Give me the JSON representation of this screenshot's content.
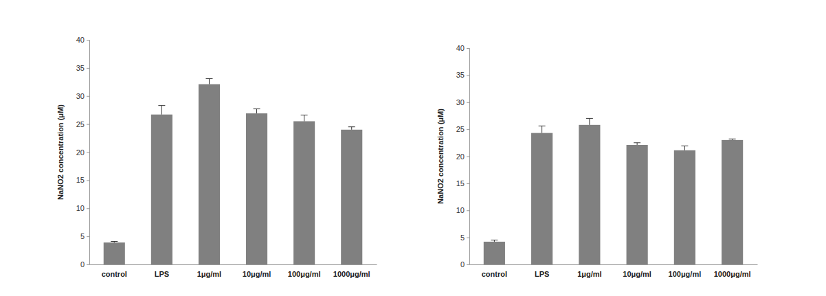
{
  "chart_data": [
    {
      "type": "bar",
      "y_label": "NaNO2 concentration  (μM)",
      "categories": [
        "control",
        "LPS",
        "1μg/ml",
        "10μg/ml",
        "100μg/ml",
        "1000μg/ml"
      ],
      "values": [
        3.9,
        26.7,
        32.1,
        26.9,
        25.5,
        24.0
      ],
      "errors": [
        0.2,
        1.6,
        1.0,
        0.8,
        1.1,
        0.5
      ],
      "color": "#808080",
      "ylim": [
        0,
        40
      ],
      "yticks": [
        0,
        5,
        10,
        15,
        20,
        25,
        30,
        35,
        40
      ],
      "grid": false
    },
    {
      "type": "bar",
      "y_label": "NaNO2 concentration  (μM)",
      "categories": [
        "control",
        "LPS",
        "1μg/ml",
        "10μg/ml",
        "100μg/ml",
        "1000μg/ml"
      ],
      "values": [
        4.2,
        24.3,
        25.8,
        22.1,
        21.1,
        23.0
      ],
      "errors": [
        0.3,
        1.3,
        1.2,
        0.4,
        0.8,
        0.2
      ],
      "color": "#808080",
      "ylim": [
        0,
        40
      ],
      "yticks": [
        0,
        5,
        10,
        15,
        20,
        25,
        30,
        35,
        40
      ],
      "grid": false
    }
  ]
}
